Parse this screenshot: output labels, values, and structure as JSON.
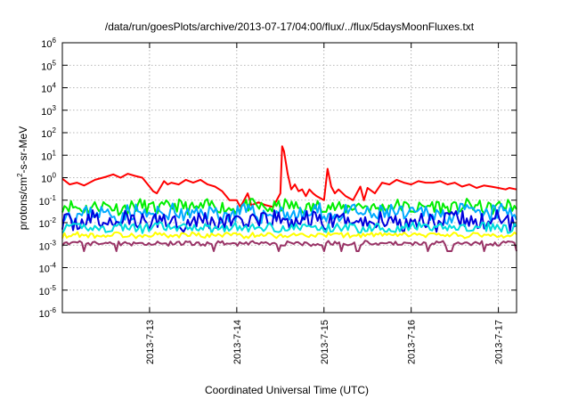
{
  "chart_data": {
    "type": "line",
    "title": "/data/run/goesPlots/archive/2013-07-17/04:00/flux/../flux/5daysMoonFluxes.txt",
    "xlabel": "Coordinated Universal Time (UTC)",
    "ylabel_parts": [
      "protons/cm",
      "2",
      "-s-sr-MeV"
    ],
    "yscale": "log",
    "ylim_exponents": [
      -6,
      6
    ],
    "y_tick_exponents": [
      -6,
      -5,
      -4,
      -3,
      -2,
      -1,
      0,
      1,
      2,
      3,
      4,
      5,
      6
    ],
    "y_tick_base": "10",
    "xlim": [
      "2013-07-12T00:00",
      "2013-07-17T05:00"
    ],
    "x_ticks": [
      {
        "label": "2013-7-13",
        "value": "2013-07-13T00:00"
      },
      {
        "label": "2013-7-14",
        "value": "2013-07-14T00:00"
      },
      {
        "label": "2013-7-15",
        "value": "2013-07-15T00:00"
      },
      {
        "label": "2013-7-16",
        "value": "2013-07-16T00:00"
      },
      {
        "label": "2013-7-17",
        "value": "2013-07-17T00:00"
      }
    ],
    "grid": true,
    "legend": "none",
    "series": [
      {
        "color": "#ff0000",
        "points": [
          [
            "2013-07-12T00:00",
            0.9
          ],
          [
            "2013-07-12T02:00",
            0.5
          ],
          [
            "2013-07-12T04:00",
            0.6
          ],
          [
            "2013-07-12T06:00",
            0.45
          ],
          [
            "2013-07-12T09:00",
            0.8
          ],
          [
            "2013-07-12T12:00",
            1.1
          ],
          [
            "2013-07-12T14:00",
            1.4
          ],
          [
            "2013-07-12T16:00",
            1.0
          ],
          [
            "2013-07-12T18:00",
            1.5
          ],
          [
            "2013-07-12T20:00",
            1.2
          ],
          [
            "2013-07-12T22:00",
            1.0
          ],
          [
            "2013-07-13T00:00",
            0.4
          ],
          [
            "2013-07-13T01:00",
            0.25
          ],
          [
            "2013-07-13T02:00",
            0.2
          ],
          [
            "2013-07-13T04:00",
            0.7
          ],
          [
            "2013-07-13T05:00",
            0.5
          ],
          [
            "2013-07-13T06:00",
            0.6
          ],
          [
            "2013-07-13T08:00",
            0.5
          ],
          [
            "2013-07-13T10:00",
            0.8
          ],
          [
            "2013-07-13T12:00",
            0.6
          ],
          [
            "2013-07-13T14:00",
            0.8
          ],
          [
            "2013-07-13T16:00",
            0.5
          ],
          [
            "2013-07-13T18:00",
            0.4
          ],
          [
            "2013-07-13T20:00",
            0.25
          ],
          [
            "2013-07-13T22:00",
            0.1
          ],
          [
            "2013-07-14T00:00",
            0.1
          ],
          [
            "2013-07-14T01:00",
            0.05
          ],
          [
            "2013-07-14T02:00",
            0.1
          ],
          [
            "2013-07-14T03:00",
            0.2
          ],
          [
            "2013-07-14T04:00",
            0.06
          ],
          [
            "2013-07-14T06:00",
            0.08
          ],
          [
            "2013-07-14T08:00",
            0.06
          ],
          [
            "2013-07-14T10:00",
            0.05
          ],
          [
            "2013-07-14T12:00",
            0.2
          ],
          [
            "2013-07-14T12:30",
            25
          ],
          [
            "2013-07-14T13:00",
            15
          ],
          [
            "2013-07-14T14:00",
            1.5
          ],
          [
            "2013-07-14T15:00",
            0.3
          ],
          [
            "2013-07-14T16:00",
            0.5
          ],
          [
            "2013-07-14T17:00",
            0.25
          ],
          [
            "2013-07-14T18:00",
            0.3
          ],
          [
            "2013-07-14T19:00",
            0.15
          ],
          [
            "2013-07-14T20:00",
            0.3
          ],
          [
            "2013-07-14T21:00",
            0.2
          ],
          [
            "2013-07-14T22:00",
            0.15
          ],
          [
            "2013-07-15T00:00",
            0.1
          ],
          [
            "2013-07-15T01:00",
            2.5
          ],
          [
            "2013-07-15T02:00",
            0.4
          ],
          [
            "2013-07-15T03:00",
            0.2
          ],
          [
            "2013-07-15T04:00",
            0.3
          ],
          [
            "2013-07-15T06:00",
            0.15
          ],
          [
            "2013-07-15T08:00",
            0.1
          ],
          [
            "2013-07-15T10:00",
            0.4
          ],
          [
            "2013-07-15T11:00",
            0.1
          ],
          [
            "2013-07-15T12:00",
            0.35
          ],
          [
            "2013-07-15T14:00",
            0.2
          ],
          [
            "2013-07-15T16:00",
            0.6
          ],
          [
            "2013-07-15T18:00",
            0.5
          ],
          [
            "2013-07-15T20:00",
            0.8
          ],
          [
            "2013-07-15T22:00",
            0.6
          ],
          [
            "2013-07-16T00:00",
            0.5
          ],
          [
            "2013-07-16T02:00",
            0.7
          ],
          [
            "2013-07-16T04:00",
            0.6
          ],
          [
            "2013-07-16T06:00",
            0.6
          ],
          [
            "2013-07-16T08:00",
            0.7
          ],
          [
            "2013-07-16T10:00",
            0.5
          ],
          [
            "2013-07-16T12:00",
            0.6
          ],
          [
            "2013-07-16T14:00",
            0.4
          ],
          [
            "2013-07-16T16:00",
            0.5
          ],
          [
            "2013-07-16T18:00",
            0.35
          ],
          [
            "2013-07-16T20:00",
            0.45
          ],
          [
            "2013-07-16T22:00",
            0.4
          ],
          [
            "2013-07-17T00:00",
            0.35
          ],
          [
            "2013-07-17T02:00",
            0.3
          ],
          [
            "2013-07-17T03:00",
            0.35
          ],
          [
            "2013-07-17T05:00",
            0.3
          ]
        ]
      },
      {
        "color": "#00ee00",
        "base": 0.05,
        "amp": 2.0,
        "seed": 11
      },
      {
        "color": "#00aaff",
        "base": 0.025,
        "amp": 2.4,
        "seed": 23
      },
      {
        "color": "#0000dd",
        "base": 0.012,
        "amp": 2.5,
        "seed": 37
      },
      {
        "color": "#00dddd",
        "base": 0.006,
        "amp": 1.6,
        "seed": 41
      },
      {
        "color": "#ffff00",
        "base": 0.0028,
        "amp": 1.3,
        "seed": 53
      },
      {
        "color": "#993366",
        "base": 0.0012,
        "amp": 1.25,
        "seed": 67
      }
    ]
  }
}
